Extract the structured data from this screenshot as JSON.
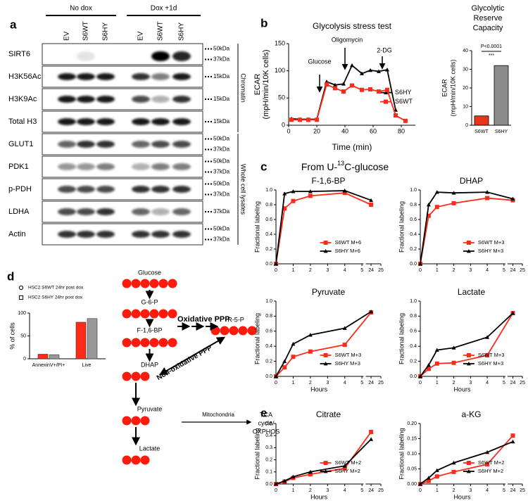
{
  "panel_labels": [
    "a",
    "b",
    "c",
    "d",
    "e"
  ],
  "blot": {
    "groups": [
      "No dox",
      "Dox +1d"
    ],
    "lanes": [
      "EV",
      "S6WT",
      "S6HY",
      "EV",
      "S6WT",
      "S6HY"
    ],
    "rows": [
      {
        "label": "SIRT6",
        "markers": [
          "50kDa",
          "37kDa"
        ]
      },
      {
        "label": "H3K56Ac",
        "markers": [
          "15kDa"
        ]
      },
      {
        "label": "H3K9Ac",
        "markers": [
          "15kDa"
        ]
      },
      {
        "label": "Total H3",
        "markers": [
          "15kDa"
        ]
      },
      {
        "label": "GLUT1",
        "markers": [
          "50kDa",
          "37kDa"
        ]
      },
      {
        "label": "PDK1",
        "markers": [
          "50kDa",
          "37kDa"
        ]
      },
      {
        "label": "p-PDH",
        "markers": [
          "50kDa",
          "37kDa"
        ]
      },
      {
        "label": "LDHA",
        "markers": [
          "37kDa"
        ]
      },
      {
        "label": "Actin",
        "markers": [
          "50kDa",
          "37kDa"
        ]
      }
    ],
    "sections": [
      "Chromatin",
      "Whole cell lysates"
    ]
  },
  "c_heading": {
    "pre": "From U-",
    "sup": "13",
    "post": "C-glucose"
  },
  "pathway": {
    "nodes": [
      "Glucose",
      "G-6-P",
      "F-1,6-BP",
      "DHAP",
      "Pyruvate",
      "Lactate",
      "R-5-P"
    ],
    "oxidative": "Oxidative PPP",
    "non_oxidative": "Non-oxidative PPP",
    "mitochondria": "Mitochondria",
    "tca": [
      "TCA",
      "cycle/",
      "OXPHOS"
    ]
  },
  "chart_data": [
    {
      "type": "line",
      "title": "Glycolysis stress test",
      "xlabel": "Time (min)",
      "ylabel": [
        "ECAR",
        "(mpH/min/10K cells)"
      ],
      "x": [
        2,
        8,
        14,
        20,
        27,
        33,
        39,
        45,
        52,
        58,
        64,
        70,
        76,
        83
      ],
      "xlim": [
        0,
        90
      ],
      "xticks": [
        0,
        20,
        40,
        60,
        80
      ],
      "ylim": [
        0,
        150
      ],
      "yticks": [
        0,
        50,
        100,
        150
      ],
      "legend": "center right",
      "annotations": [
        "Glucose",
        "Oligomycin",
        "2-DG"
      ],
      "series": [
        {
          "name": "S6HY",
          "color": "#000000",
          "marker": "triangle",
          "values": [
            12,
            11,
            11,
            11,
            80,
            74,
            76,
            110,
            95,
            101,
            99,
            102,
            28,
            null
          ]
        },
        {
          "name": "S6WT",
          "color": "#ff2a1a",
          "marker": "square",
          "values": [
            10,
            10,
            10,
            10,
            75,
            68,
            62,
            73,
            65,
            66,
            62,
            65,
            18,
            8
          ]
        }
      ]
    },
    {
      "type": "bar",
      "title": [
        "Glycolytic",
        "Reserve",
        "Capacity"
      ],
      "ylabel": [
        "ECAR",
        "(mpH/min/10K cells)"
      ],
      "categories": [
        "S6WT",
        "S6HY"
      ],
      "values": [
        5,
        32
      ],
      "colors": [
        "#e8341c",
        "#8c8c8c"
      ],
      "ylim": [
        0,
        40
      ],
      "yticks": [
        0,
        10,
        20,
        30,
        40
      ],
      "annotations": [
        "P<0.0001",
        "***"
      ]
    },
    {
      "type": "line",
      "title": "F-1,6-BP",
      "ylabel": "Fractional labeling",
      "x": [
        0,
        0.5,
        1,
        2,
        4,
        24
      ],
      "xlim": [
        0,
        25
      ],
      "x_break": [
        5,
        23.5
      ],
      "xticks": [
        0,
        1,
        2,
        3,
        4,
        5,
        24,
        25
      ],
      "ylim": [
        0,
        1
      ],
      "yticks": [
        {
          "value": 0,
          "label": "0.0"
        },
        0.2,
        0.4,
        0.6,
        0.8,
        {
          "value": 1,
          "label": "1.0"
        }
      ],
      "legend": "lower right",
      "series": [
        {
          "name": "S6WT M+6",
          "color": "#ff2a1a",
          "marker": "square",
          "values": [
            0,
            0.75,
            0.85,
            0.92,
            0.96,
            0.8
          ]
        },
        {
          "name": "S6HY M+6",
          "color": "#000000",
          "marker": "triangle",
          "values": [
            0,
            0.95,
            0.98,
            0.98,
            0.99,
            0.86
          ]
        }
      ]
    },
    {
      "type": "line",
      "title": "DHAP",
      "ylabel": "Fractional labeling",
      "x": [
        0,
        0.5,
        1,
        2,
        4,
        24
      ],
      "xlim": [
        0,
        25
      ],
      "x_break": [
        5,
        23.5
      ],
      "xticks": [
        0,
        1,
        2,
        3,
        4,
        5,
        24,
        25
      ],
      "ylim": [
        0,
        1
      ],
      "yticks": [
        {
          "value": 0,
          "label": "0.0"
        },
        0.2,
        0.4,
        0.6,
        0.8,
        {
          "value": 1,
          "label": "1.0"
        }
      ],
      "legend": "lower right",
      "series": [
        {
          "name": "S6WT M+3",
          "color": "#ff2a1a",
          "marker": "square",
          "values": [
            0,
            0.65,
            0.77,
            0.82,
            0.89,
            0.86
          ]
        },
        {
          "name": "S6HY M+3",
          "color": "#000000",
          "marker": "triangle",
          "values": [
            0,
            0.8,
            0.97,
            0.96,
            0.97,
            0.88
          ]
        }
      ]
    },
    {
      "type": "line",
      "title": "Pyruvate",
      "xlabel": "Hours",
      "ylabel": "Fractional labeling",
      "x": [
        0,
        0.5,
        1,
        2,
        4,
        24
      ],
      "xlim": [
        0,
        25
      ],
      "x_break": [
        5,
        23.5
      ],
      "xticks": [
        0,
        1,
        2,
        3,
        4,
        5,
        24,
        25
      ],
      "ylim": [
        0,
        1
      ],
      "yticks": [
        {
          "value": 0,
          "label": "0.0"
        },
        0.2,
        0.4,
        0.6,
        0.8,
        {
          "value": 1,
          "label": "1.0"
        }
      ],
      "legend": "lower right",
      "series": [
        {
          "name": "S6WT M+3",
          "color": "#ff2a1a",
          "marker": "square",
          "values": [
            0,
            0.12,
            0.26,
            0.33,
            0.42,
            0.85
          ]
        },
        {
          "name": "S6HY M+3",
          "color": "#000000",
          "marker": "triangle",
          "values": [
            0,
            0.2,
            0.43,
            0.55,
            0.64,
            0.86
          ]
        }
      ]
    },
    {
      "type": "line",
      "title": "Lactate",
      "xlabel": "Hours",
      "ylabel": "Fractional labeling",
      "x": [
        0,
        0.5,
        1,
        2,
        4,
        24
      ],
      "xlim": [
        0,
        25
      ],
      "x_break": [
        5,
        23.5
      ],
      "xticks": [
        0,
        1,
        2,
        3,
        4,
        5,
        24,
        25
      ],
      "ylim": [
        0,
        1
      ],
      "yticks": [
        {
          "value": 0,
          "label": "0.0"
        },
        0.2,
        0.4,
        0.6,
        0.8,
        {
          "value": 1,
          "label": "1.0"
        }
      ],
      "legend": "lower right",
      "series": [
        {
          "name": "S6WT M+3",
          "color": "#ff2a1a",
          "marker": "square",
          "values": [
            0,
            0.1,
            0.17,
            0.18,
            0.28,
            0.84
          ]
        },
        {
          "name": "S6HY M+3",
          "color": "#000000",
          "marker": "triangle",
          "values": [
            0,
            0.15,
            0.35,
            0.38,
            0.52,
            0.84
          ]
        }
      ]
    },
    {
      "type": "line",
      "title": "Citrate",
      "xlabel": "Hours",
      "ylabel": "Fractional labeling",
      "x": [
        0,
        0.5,
        1,
        2,
        4,
        24
      ],
      "xlim": [
        0,
        25
      ],
      "x_break": [
        5,
        23.5
      ],
      "xticks": [
        0,
        1,
        2,
        3,
        4,
        5,
        24,
        25
      ],
      "ylim": [
        0,
        0.5
      ],
      "yticks": [
        {
          "value": 0,
          "label": "0.0"
        },
        0.1,
        0.2,
        0.3,
        0.4,
        0.5
      ],
      "legend": "lower right",
      "series": [
        {
          "name": "S6WT M+2",
          "color": "#ff2a1a",
          "marker": "square",
          "values": [
            0,
            0.02,
            0.05,
            0.08,
            0.13,
            0.43
          ]
        },
        {
          "name": "S6HY M+2",
          "color": "#000000",
          "marker": "triangle",
          "values": [
            0,
            0.025,
            0.06,
            0.1,
            0.15,
            0.37
          ]
        }
      ]
    },
    {
      "type": "line",
      "title": "a-KG",
      "xlabel": "Hours",
      "ylabel": "Fractional labeling",
      "x": [
        0,
        0.5,
        1,
        2,
        4,
        24
      ],
      "xlim": [
        0,
        25
      ],
      "x_break": [
        5,
        23.5
      ],
      "xticks": [
        0,
        1,
        2,
        3,
        4,
        5,
        24,
        25
      ],
      "ylim": [
        0,
        0.2
      ],
      "yticks": [
        {
          "value": 0,
          "label": "0.00"
        },
        0.05,
        {
          "value": 0.1,
          "label": "0.10"
        },
        0.15,
        {
          "value": 0.2,
          "label": "0.20"
        }
      ],
      "legend": "lower right",
      "series": [
        {
          "name": "S6WT M+2",
          "color": "#ff2a1a",
          "marker": "square",
          "values": [
            0,
            0.01,
            0.025,
            0.04,
            0.065,
            0.16
          ]
        },
        {
          "name": "S6HY M+2",
          "color": "#000000",
          "marker": "triangle",
          "values": [
            0,
            0.02,
            0.045,
            0.07,
            0.105,
            0.14
          ]
        }
      ]
    },
    {
      "type": "bar",
      "ylabel": "% of cells",
      "categories": [
        "AnnexinV+/PI+",
        "Live"
      ],
      "ylim": [
        0,
        100
      ],
      "yticks": [
        0,
        50,
        100
      ],
      "legend": "upper left",
      "series": [
        {
          "name": "HSC2 S6WT 24hr post dox",
          "color": "#ff2a1a",
          "marker": "circle",
          "values": [
            10,
            80
          ]
        },
        {
          "name": "HSC2 S6HY 24hr post dox",
          "color": "#999999",
          "marker": "square",
          "values": [
            9,
            88
          ]
        }
      ]
    }
  ]
}
